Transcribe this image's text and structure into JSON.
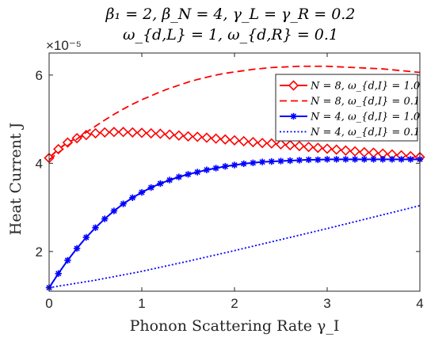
{
  "chart_data": {
    "type": "line",
    "title_line1": "β₁ = 2, β_N = 4, γ_L = γ_R = 0.2",
    "title_line2": "ω_{d,L} = 1, ω_{d,R} = 0.1",
    "xlabel": "Phonon Scattering Rate γ_I",
    "ylabel": "Heat Current J",
    "y_exponent_label": "×10⁻⁵",
    "xlim": [
      0,
      4
    ],
    "ylim": [
      1.1,
      6.5
    ],
    "x_ticks": [
      0,
      1,
      2,
      3,
      4
    ],
    "y_ticks": [
      2,
      4,
      6
    ],
    "legend_position": "upper-right",
    "grid": false,
    "series": [
      {
        "name": "N = 8, ω_{d,I} = 1.0",
        "color": "#ff0000",
        "style": "solid",
        "marker": "diamond",
        "x": [
          0,
          0.1,
          0.2,
          0.3,
          0.4,
          0.5,
          0.6,
          0.7,
          0.8,
          0.9,
          1.0,
          1.1,
          1.2,
          1.3,
          1.4,
          1.5,
          1.6,
          1.7,
          1.8,
          1.9,
          2.0,
          2.1,
          2.2,
          2.3,
          2.4,
          2.5,
          2.6,
          2.7,
          2.8,
          2.9,
          3.0,
          3.1,
          3.2,
          3.3,
          3.4,
          3.5,
          3.6,
          3.7,
          3.8,
          3.9,
          4.0
        ],
        "y": [
          4.12,
          4.32,
          4.47,
          4.57,
          4.64,
          4.68,
          4.7,
          4.71,
          4.71,
          4.7,
          4.69,
          4.68,
          4.67,
          4.65,
          4.63,
          4.61,
          4.6,
          4.58,
          4.56,
          4.54,
          4.52,
          4.5,
          4.48,
          4.46,
          4.45,
          4.43,
          4.41,
          4.39,
          4.37,
          4.35,
          4.33,
          4.31,
          4.29,
          4.27,
          4.25,
          4.24,
          4.22,
          4.2,
          4.18,
          4.16,
          4.14
        ]
      },
      {
        "name": "N = 8, ω_{d,I} = 0.1",
        "color": "#ff0000",
        "style": "dashed",
        "marker": "none",
        "x": [
          0,
          0.1,
          0.2,
          0.3,
          0.4,
          0.5,
          0.6,
          0.7,
          0.8,
          0.9,
          1.0,
          1.1,
          1.2,
          1.3,
          1.4,
          1.5,
          1.6,
          1.7,
          1.8,
          1.9,
          2.0,
          2.1,
          2.2,
          2.3,
          2.4,
          2.5,
          2.6,
          2.7,
          2.8,
          2.9,
          3.0,
          3.1,
          3.2,
          3.3,
          3.4,
          3.5,
          3.6,
          3.7,
          3.8,
          3.9,
          4.0
        ],
        "y": [
          4.08,
          4.24,
          4.4,
          4.55,
          4.7,
          4.84,
          4.98,
          5.11,
          5.23,
          5.34,
          5.44,
          5.53,
          5.62,
          5.7,
          5.77,
          5.84,
          5.9,
          5.95,
          6.0,
          6.04,
          6.07,
          6.1,
          6.13,
          6.15,
          6.17,
          6.18,
          6.19,
          6.2,
          6.2,
          6.2,
          6.2,
          6.19,
          6.18,
          6.17,
          6.16,
          6.15,
          6.14,
          6.12,
          6.1,
          6.08,
          6.06
        ]
      },
      {
        "name": "N = 4, ω_{d,I} = 1.0",
        "color": "#0000ff",
        "style": "solid",
        "marker": "star",
        "x": [
          0,
          0.1,
          0.2,
          0.3,
          0.4,
          0.5,
          0.6,
          0.7,
          0.8,
          0.9,
          1.0,
          1.1,
          1.2,
          1.3,
          1.4,
          1.5,
          1.6,
          1.7,
          1.8,
          1.9,
          2.0,
          2.1,
          2.2,
          2.3,
          2.4,
          2.5,
          2.6,
          2.7,
          2.8,
          2.9,
          3.0,
          3.1,
          3.2,
          3.3,
          3.4,
          3.5,
          3.6,
          3.7,
          3.8,
          3.9,
          4.0
        ],
        "y": [
          1.18,
          1.5,
          1.8,
          2.07,
          2.32,
          2.54,
          2.74,
          2.92,
          3.08,
          3.22,
          3.34,
          3.45,
          3.54,
          3.62,
          3.69,
          3.75,
          3.8,
          3.85,
          3.89,
          3.93,
          3.96,
          3.99,
          4.01,
          4.03,
          4.04,
          4.05,
          4.06,
          4.07,
          4.08,
          4.08,
          4.09,
          4.09,
          4.09,
          4.09,
          4.09,
          4.09,
          4.09,
          4.09,
          4.09,
          4.09,
          4.09
        ]
      },
      {
        "name": "N = 4, ω_{d,I} = 0.1",
        "color": "#0000ff",
        "style": "dotted",
        "marker": "none",
        "x": [
          0,
          0.5,
          1.0,
          1.5,
          2.0,
          2.5,
          3.0,
          3.5,
          4.0
        ],
        "y": [
          1.18,
          1.35,
          1.55,
          1.78,
          2.02,
          2.27,
          2.52,
          2.78,
          3.04
        ]
      }
    ]
  }
}
